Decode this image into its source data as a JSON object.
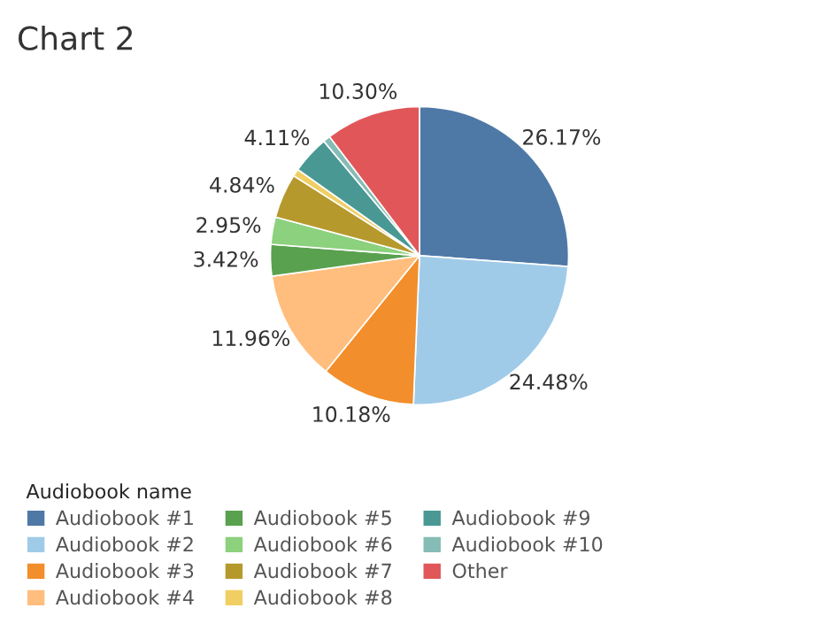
{
  "chart_data": {
    "type": "pie",
    "title": "Chart 2",
    "legend_title": "Audiobook name",
    "legend": "bottom",
    "categories": [
      "Audiobook #1",
      "Audiobook #2",
      "Audiobook #3",
      "Audiobook #4",
      "Audiobook #5",
      "Audiobook #6",
      "Audiobook #7",
      "Audiobook #8",
      "Audiobook #9",
      "Audiobook #10",
      "Other"
    ],
    "values": [
      26.17,
      24.48,
      10.18,
      11.96,
      3.42,
      2.95,
      4.84,
      0.8,
      4.11,
      0.79,
      10.3
    ],
    "value_labels": [
      "26.17%",
      "24.48%",
      "10.18%",
      "11.96%",
      "3.42%",
      "2.95%",
      "4.84%",
      null,
      "4.11%",
      null,
      "10.30%"
    ],
    "colors": [
      "#4e79a7",
      "#a0cbe8",
      "#f28e2b",
      "#ffbe7d",
      "#59a14f",
      "#8cd17d",
      "#b6992d",
      "#f1ce63",
      "#499894",
      "#86bcb6",
      "#e15759"
    ]
  }
}
